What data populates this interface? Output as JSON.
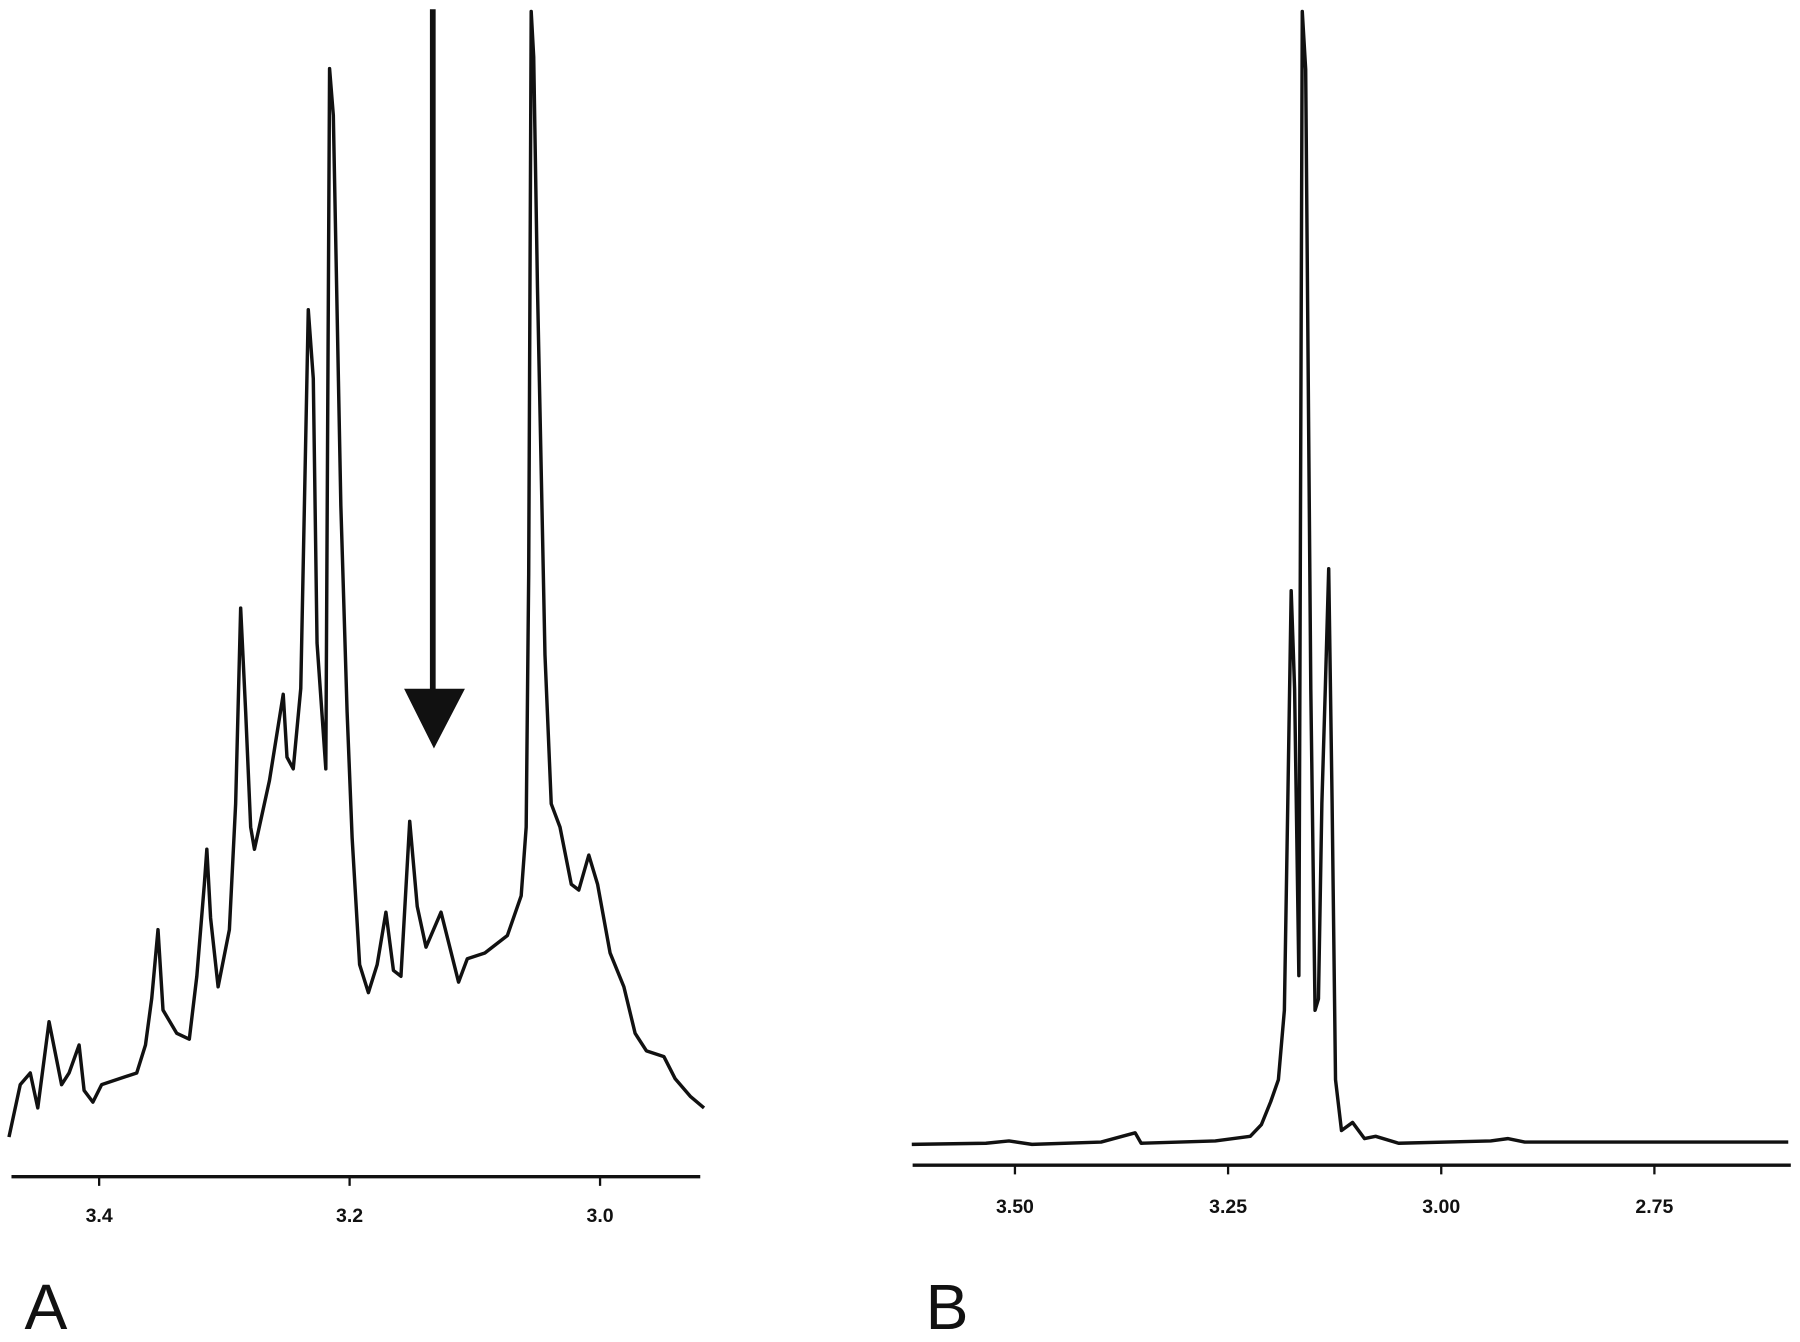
{
  "chart_data": [
    {
      "type": "line",
      "panel_label": "A",
      "color": "#111111",
      "xlim": [
        3.47,
        2.92
      ],
      "ylim": [
        0,
        100
      ],
      "xticks": [
        3.4,
        3.2,
        {
          "value": 3,
          "label": "3.0"
        }
      ],
      "x": [
        3.472,
        3.463,
        3.455,
        3.449,
        3.44,
        3.43,
        3.424,
        3.416,
        3.412,
        3.405,
        3.398,
        3.384,
        3.37,
        3.363,
        3.358,
        3.353,
        3.349,
        3.338,
        3.328,
        3.322,
        3.316,
        3.314,
        3.311,
        3.305,
        3.296,
        3.291,
        3.287,
        3.283,
        3.279,
        3.276,
        3.264,
        3.253,
        3.25,
        3.245,
        3.239,
        3.233,
        3.229,
        3.226,
        3.219,
        3.216,
        3.213,
        3.207,
        3.202,
        3.198,
        3.192,
        3.185,
        3.178,
        3.171,
        3.165,
        3.159,
        3.152,
        3.146,
        3.139,
        3.127,
        3.113,
        3.106,
        3.092,
        3.074,
        3.063,
        3.059,
        3.057,
        3.055,
        3.053,
        3.05,
        3.044,
        3.039,
        3.032,
        3.023,
        3.017,
        3.009,
        3.002,
        2.992,
        2.981,
        2.972,
        2.963,
        2.949,
        2.94,
        2.928,
        2.917
      ],
      "values": [
        3.4,
        7.9,
        8.9,
        5.9,
        13.3,
        7.9,
        8.9,
        11.3,
        7.4,
        6.4,
        7.9,
        8.4,
        8.9,
        11.3,
        15.3,
        21.2,
        14.3,
        12.3,
        11.8,
        17.2,
        25.1,
        28.1,
        22.2,
        16.3,
        21.2,
        32.0,
        48.8,
        39.9,
        30.0,
        28.1,
        34.0,
        41.4,
        36.0,
        35.0,
        41.9,
        74.4,
        68.5,
        45.8,
        35.0,
        95.1,
        91.1,
        57.6,
        39.9,
        29.1,
        18.2,
        15.8,
        18.2,
        22.7,
        17.7,
        17.2,
        30.5,
        23.2,
        19.7,
        22.7,
        16.7,
        18.7,
        19.2,
        20.7,
        24.1,
        30.0,
        51.7,
        100,
        96.1,
        76.4,
        44.8,
        32.0,
        30.0,
        25.1,
        24.6,
        27.6,
        25.1,
        19.2,
        16.3,
        12.3,
        10.8,
        10.3,
        8.4,
        6.9,
        5.9
      ]
    },
    {
      "type": "line",
      "panel_label": "B",
      "color": "#111111",
      "xlim": [
        3.62,
        2.59
      ],
      "ylim": [
        0,
        100
      ],
      "xticks": [
        {
          "value": 3.5,
          "label": "3.50"
        },
        3.25,
        {
          "value": 3,
          "label": "3.00"
        },
        2.75
      ],
      "x": [
        3.621,
        3.534,
        3.507,
        3.48,
        3.399,
        3.359,
        3.352,
        3.265,
        3.224,
        3.211,
        3.2,
        3.191,
        3.184,
        3.18,
        3.176,
        3.172,
        3.167,
        3.163,
        3.159,
        3.153,
        3.148,
        3.144,
        3.14,
        3.136,
        3.132,
        3.128,
        3.124,
        3.117,
        3.104,
        3.09,
        3.077,
        3.05,
        2.942,
        2.922,
        2.902,
        2.593
      ],
      "values": [
        1.8,
        1.9,
        2.1,
        1.8,
        2.0,
        2.8,
        1.9,
        2.1,
        2.5,
        3.5,
        5.5,
        7.4,
        13.4,
        31.3,
        49.7,
        41.2,
        16.4,
        99.8,
        94.8,
        41.2,
        13.4,
        14.4,
        31.3,
        41.2,
        51.6,
        31.3,
        7.4,
        3.0,
        3.7,
        2.3,
        2.5,
        1.9,
        2.1,
        2.3,
        2.0,
        2.0
      ]
    }
  ]
}
